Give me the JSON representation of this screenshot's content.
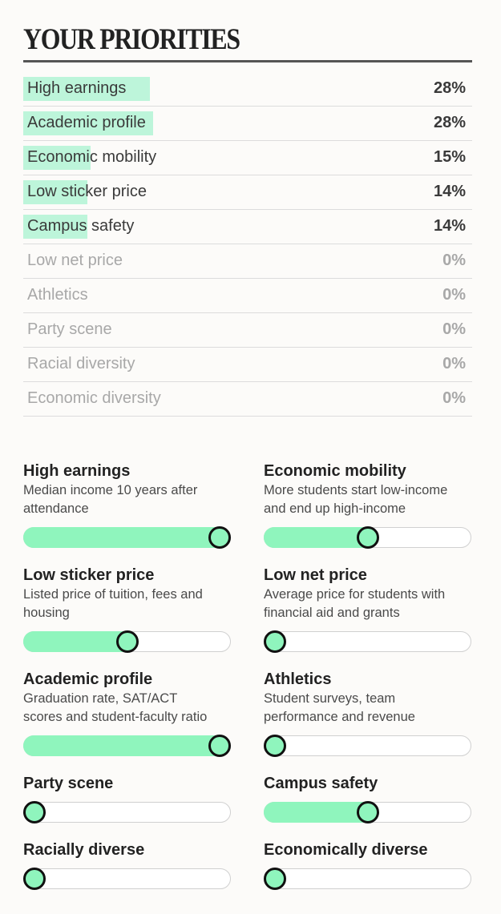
{
  "title": "YOUR PRIORITIES",
  "priorities": [
    {
      "label": "High earnings",
      "pct": "28%",
      "value": 0.28
    },
    {
      "label": "Academic profile",
      "pct": "28%",
      "value": 0.28
    },
    {
      "label": "Economic mobility",
      "pct": "15%",
      "value": 0.15
    },
    {
      "label": "Low sticker price",
      "pct": "14%",
      "value": 0.14
    },
    {
      "label": "Campus safety",
      "pct": "14%",
      "value": 0.14
    },
    {
      "label": "Low net price",
      "pct": "0%",
      "value": 0
    },
    {
      "label": "Athletics",
      "pct": "0%",
      "value": 0
    },
    {
      "label": "Party scene",
      "pct": "0%",
      "value": 0
    },
    {
      "label": "Racial diversity",
      "pct": "0%",
      "value": 0
    },
    {
      "label": "Economic diversity",
      "pct": "0%",
      "value": 0
    }
  ],
  "sliders": [
    {
      "name": "High earnings",
      "desc1": "Median income 10 years after",
      "desc2": "attendance",
      "level": 1.0
    },
    {
      "name": "Economic mobility",
      "desc1": "More students start low-income",
      "desc2": "and end up high-income",
      "level": 0.5
    },
    {
      "name": "Low sticker price",
      "desc1": "Listed price of tuition, fees and",
      "desc2": "housing",
      "level": 0.5
    },
    {
      "name": "Low net price",
      "desc1": "Average price for students with",
      "desc2": "financial aid and grants",
      "level": 0
    },
    {
      "name": "Academic profile",
      "desc1": "Graduation rate, SAT/ACT",
      "desc2": "scores and student-faculty ratio",
      "level": 1.0
    },
    {
      "name": "Athletics",
      "desc1": "Student surveys, team",
      "desc2": "performance and revenue",
      "level": 0
    },
    {
      "name": "Party scene",
      "desc1": "",
      "desc2": "",
      "level": 0
    },
    {
      "name": "Campus safety",
      "desc1": "",
      "desc2": "",
      "level": 0.5
    },
    {
      "name": "Racially diverse",
      "desc1": "",
      "desc2": "",
      "level": 0
    },
    {
      "name": "Economically diverse",
      "desc1": "",
      "desc2": "",
      "level": 0
    }
  ],
  "colors": {
    "bar_highlight": "#bdf5da",
    "slider_fill": "#8ff5bd",
    "knob_border": "#111111"
  }
}
